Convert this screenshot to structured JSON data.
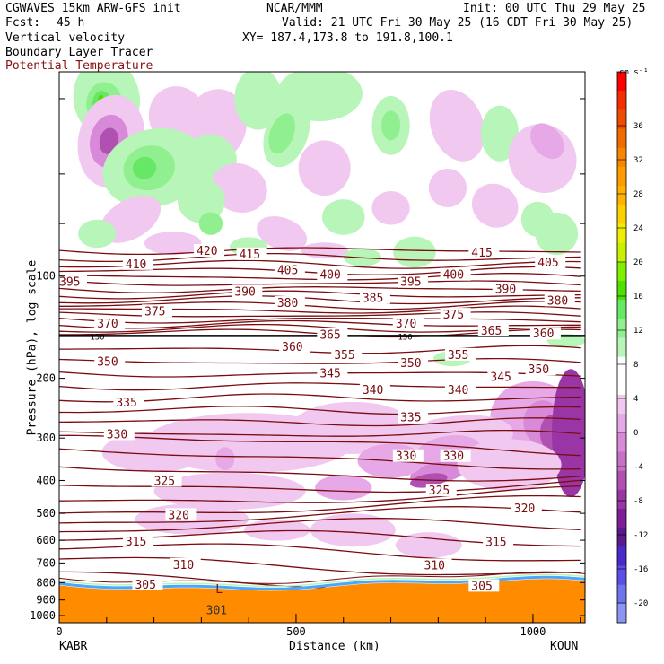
{
  "header": {
    "model": "CGWAVES 15km ARW-GFS init",
    "center": "NCAR/MMM",
    "init": "Init: 00 UTC Thu 29 May 25",
    "fcst_label": "Fcst:",
    "fcst_value": "45 h",
    "valid": "Valid: 21 UTC Fri 30 May 25 (16 CDT Fri 30 May 25)",
    "field1": "Vertical velocity",
    "xy": "XY= 187.4,173.8 to 191.8,100.1",
    "field2": "Boundary Layer Tracer",
    "field3": "Potential Temperature"
  },
  "colors": {
    "theta": "#7a0c10",
    "terrain": "#ff8c00",
    "pbl_line": "#000000"
  },
  "chart_data": {
    "type": "cross-section contour",
    "xlabel": "Distance (km)",
    "ylabel": "Pressure (hPa), log scale",
    "x_ticks": [
      0,
      500,
      1000
    ],
    "x_range": [
      0,
      1110
    ],
    "y_scale": "log",
    "y_ticks": [
      100,
      200,
      300,
      400,
      500,
      600,
      700,
      800,
      900,
      1000
    ],
    "y_range": [
      1050,
      25
    ],
    "x_endpoints": {
      "left": "KABR",
      "right": "KOUN"
    },
    "tropopause_label": "150",
    "low_label": "L",
    "low_value": "301",
    "colorbar": {
      "unit": "cm s⁻¹",
      "labels": [
        36,
        32,
        28,
        24,
        20,
        16,
        12,
        8,
        4,
        0,
        -4,
        -8,
        -12,
        -16,
        -20
      ],
      "colors": [
        "#ff0000",
        "#f42d00",
        "#ee4d00",
        "#f06b00",
        "#f88500",
        "#ff9a00",
        "#ffb300",
        "#ffd000",
        "#f0ee00",
        "#c8f000",
        "#80ee00",
        "#50e000",
        "#66e866",
        "#90f090",
        "#b8f5b8",
        "#ffffff",
        "#ffffff",
        "#f0c8f0",
        "#e6a8e6",
        "#d88ad8",
        "#c870c8",
        "#b050b0",
        "#9a35a5",
        "#7e1d96",
        "#5a1a8a",
        "#4a2ac8",
        "#5a50e6",
        "#6e74ee",
        "#8a96f2"
      ]
    },
    "theta_labels": [
      {
        "value": "420",
        "x": 290,
        "p": 85
      },
      {
        "value": "415",
        "x": 380,
        "p": 87
      },
      {
        "value": "415",
        "x": 870,
        "p": 86
      },
      {
        "value": "410",
        "x": 140,
        "p": 93
      },
      {
        "value": "405",
        "x": 460,
        "p": 97
      },
      {
        "value": "405",
        "x": 1010,
        "p": 92
      },
      {
        "value": "400",
        "x": 550,
        "p": 100
      },
      {
        "value": "400",
        "x": 810,
        "p": 100
      },
      {
        "value": "395",
        "x": 0,
        "p": 105
      },
      {
        "value": "395",
        "x": 720,
        "p": 105
      },
      {
        "value": "390",
        "x": 370,
        "p": 112
      },
      {
        "value": "390",
        "x": 920,
        "p": 110
      },
      {
        "value": "385",
        "x": 640,
        "p": 117
      },
      {
        "value": "380",
        "x": 460,
        "p": 121
      },
      {
        "value": "380",
        "x": 1030,
        "p": 119
      },
      {
        "value": "375",
        "x": 180,
        "p": 128
      },
      {
        "value": "375",
        "x": 810,
        "p": 131
      },
      {
        "value": "370",
        "x": 80,
        "p": 139
      },
      {
        "value": "370",
        "x": 710,
        "p": 139
      },
      {
        "value": "365",
        "x": 550,
        "p": 150
      },
      {
        "value": "365",
        "x": 890,
        "p": 146
      },
      {
        "value": "360",
        "x": 470,
        "p": 163
      },
      {
        "value": "360",
        "x": 1000,
        "p": 149
      },
      {
        "value": "355",
        "x": 580,
        "p": 172
      },
      {
        "value": "355",
        "x": 820,
        "p": 172
      },
      {
        "value": "350",
        "x": 80,
        "p": 180
      },
      {
        "value": "350",
        "x": 720,
        "p": 182
      },
      {
        "value": "350",
        "x": 990,
        "p": 190
      },
      {
        "value": "345",
        "x": 550,
        "p": 195
      },
      {
        "value": "345",
        "x": 910,
        "p": 200
      },
      {
        "value": "340",
        "x": 640,
        "p": 218
      },
      {
        "value": "340",
        "x": 820,
        "p": 218
      },
      {
        "value": "335",
        "x": 120,
        "p": 238
      },
      {
        "value": "335",
        "x": 720,
        "p": 263
      },
      {
        "value": "330",
        "x": 100,
        "p": 295
      },
      {
        "value": "330",
        "x": 710,
        "p": 342
      },
      {
        "value": "330",
        "x": 810,
        "p": 342
      },
      {
        "value": "325",
        "x": 200,
        "p": 405
      },
      {
        "value": "325",
        "x": 780,
        "p": 432
      },
      {
        "value": "320",
        "x": 230,
        "p": 510
      },
      {
        "value": "320",
        "x": 960,
        "p": 487
      },
      {
        "value": "315",
        "x": 140,
        "p": 610
      },
      {
        "value": "315",
        "x": 900,
        "p": 612
      },
      {
        "value": "310",
        "x": 240,
        "p": 715
      },
      {
        "value": "310",
        "x": 770,
        "p": 717
      },
      {
        "value": "305",
        "x": 160,
        "p": 818
      },
      {
        "value": "305",
        "x": 870,
        "p": 825
      }
    ]
  }
}
